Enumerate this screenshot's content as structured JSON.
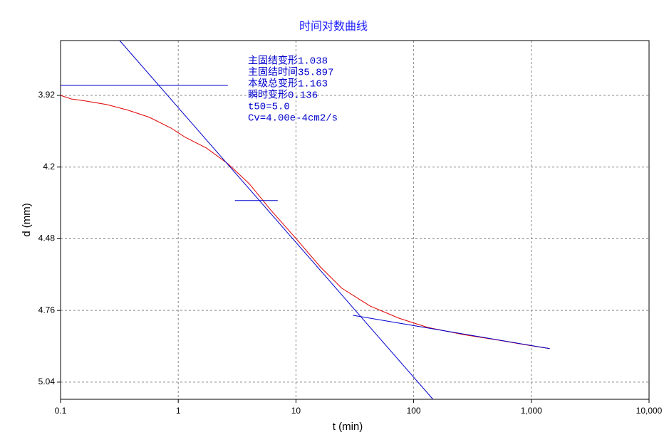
{
  "chart_data": {
    "type": "line",
    "title": "时间对数曲线",
    "x_label": "t (min)",
    "y_label": "d (mm)",
    "x_log": true,
    "y_reversed": true,
    "grid": true,
    "xlim": [
      0.1,
      10000
    ],
    "xticks": [
      0.1,
      1,
      10,
      100,
      {
        "value": 1000,
        "label": "1,000"
      },
      {
        "value": 10000,
        "label": "10,000"
      }
    ],
    "ylim": [
      3.706,
      5.107
    ],
    "yticks": [
      3.92,
      4.2,
      4.48,
      4.76,
      5.04
    ],
    "annotations": [
      "主固结变形1.038",
      "主固结时间35.897",
      "本级总变形1.163",
      "瞬时变形0.136",
      "t50=5.0",
      "Cv=4.00e-4cm2/s"
    ],
    "series": [
      {
        "color": "#e00000",
        "x": [
          0.1,
          0.123,
          0.163,
          0.247,
          0.376,
          0.57,
          0.87,
          1.15,
          1.74,
          2.64,
          4.01,
          6.09,
          10,
          16.1,
          24.5,
          42.8,
          74.8,
          130.6,
          262,
          525,
          916,
          1432
        ],
        "values": [
          3.92,
          3.934,
          3.942,
          3.956,
          3.978,
          4.006,
          4.048,
          4.084,
          4.126,
          4.187,
          4.265,
          4.367,
          4.479,
          4.59,
          4.673,
          4.743,
          4.79,
          4.826,
          4.854,
          4.876,
          4.895,
          4.909
        ]
      },
      {
        "color": "#0000cc",
        "x": [
          0.318,
          145.9
        ],
        "values": [
          3.706,
          5.107
        ]
      },
      {
        "color": "#0000cc",
        "x": [
          0.1,
          2.64
        ],
        "values": [
          3.881,
          3.881
        ]
      },
      {
        "color": "#0000cc",
        "x": [
          3.03,
          7.0
        ],
        "values": [
          4.331,
          4.331
        ]
      },
      {
        "color": "#0000cc",
        "x": [
          30.6,
          1432
        ],
        "values": [
          4.779,
          4.909
        ]
      }
    ]
  }
}
